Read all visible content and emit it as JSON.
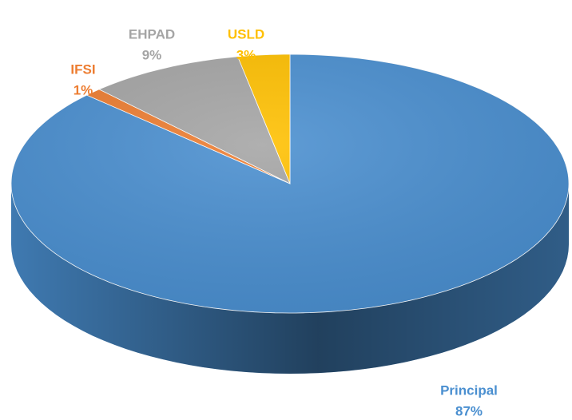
{
  "chart_data": {
    "type": "pie3d",
    "categories": [
      "Principal",
      "IFSI",
      "EHPAD",
      "USLD"
    ],
    "values": [
      87,
      1,
      9,
      3
    ],
    "value_labels": [
      "87%",
      "1%",
      "9%",
      "3%"
    ],
    "colors": [
      "#4a8fd0",
      "#ed7d31",
      "#a5a5a5",
      "#ffc000"
    ]
  }
}
